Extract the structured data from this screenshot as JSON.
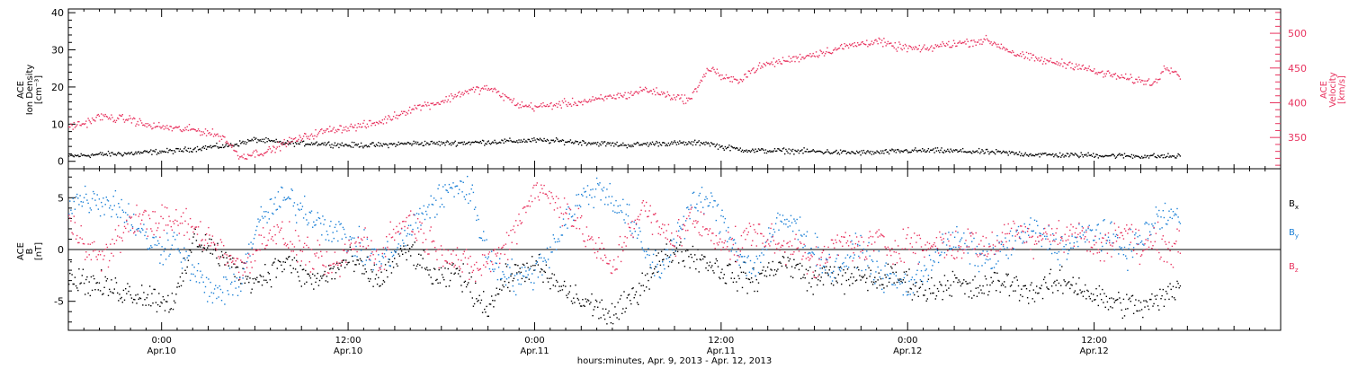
{
  "colors": {
    "black": "#000000",
    "pink": "#e8335f",
    "blue": "#1a7fd6"
  },
  "xaxis": {
    "tick_labels": [
      {
        "time": "0:00",
        "date": "Apr.10",
        "hour": 24
      },
      {
        "time": "12:00",
        "date": "Apr.10",
        "hour": 36
      },
      {
        "time": "0:00",
        "date": "Apr.11",
        "hour": 48
      },
      {
        "time": "12:00",
        "date": "Apr.11",
        "hour": 60
      },
      {
        "time": "0:00",
        "date": "Apr.12",
        "hour": 72
      },
      {
        "time": "12:00",
        "date": "Apr.12",
        "hour": 84
      }
    ],
    "caption": "hours:minutes, Apr.  9, 2013 - Apr. 12, 2013"
  },
  "chart_data": [
    {
      "type": "scatter",
      "panel": "top",
      "xlim_hours": [
        18,
        96
      ],
      "left_axis": {
        "label_lines": [
          "ACE",
          "Ion Density",
          "[cm⁻³]"
        ],
        "ylim": [
          -2,
          41
        ],
        "ticks": [
          0,
          10,
          20,
          30,
          40
        ]
      },
      "right_axis": {
        "label_lines": [
          "ACE",
          "Velocity",
          "[km/s]"
        ],
        "ylim": [
          305,
          535
        ],
        "ticks": [
          350,
          400,
          450,
          500
        ]
      },
      "series": [
        {
          "axis": "left",
          "color": "black",
          "noise": 0.6,
          "x": [
            18,
            20,
            22,
            24,
            25,
            26,
            27,
            28,
            29,
            30,
            31,
            32,
            34,
            36,
            38,
            40,
            42,
            44,
            46,
            48,
            50,
            52,
            54,
            56,
            58,
            59,
            60,
            62,
            64,
            66,
            68,
            70,
            72,
            74,
            76,
            78,
            80,
            82,
            84,
            86,
            88,
            89.5
          ],
          "y": [
            1.5,
            2,
            2.3,
            2.8,
            3,
            3.5,
            4,
            4.2,
            5,
            6,
            5.5,
            5,
            5,
            4.5,
            4.5,
            5,
            5,
            5.2,
            5.5,
            5.8,
            5.5,
            5,
            4.5,
            5,
            5,
            5.2,
            4,
            3,
            3,
            2.8,
            2.5,
            2.5,
            3,
            3,
            2.8,
            2.5,
            2,
            1.8,
            1.8,
            1.6,
            1.5,
            1.5
          ]
        },
        {
          "axis": "right",
          "color": "pink",
          "noise": 5,
          "x": [
            18,
            19,
            20,
            21,
            22,
            23,
            24,
            25,
            26,
            27,
            28,
            29,
            30,
            31,
            32,
            33,
            34,
            35,
            36,
            37,
            38,
            39,
            40,
            41,
            42,
            43,
            44,
            45,
            46,
            47,
            48,
            49,
            50,
            51,
            52,
            53,
            54,
            55,
            56,
            57,
            58,
            58.5,
            59,
            59.5,
            60,
            61,
            62,
            63,
            64,
            65,
            66,
            67,
            68,
            69,
            70,
            71,
            72,
            73,
            74,
            75,
            76,
            77,
            78,
            79,
            80,
            81,
            82,
            83,
            84,
            85,
            86,
            87,
            88,
            88.5,
            89,
            89.5
          ],
          "y": [
            367,
            371,
            381,
            378,
            377,
            368,
            366,
            363,
            362,
            358,
            350,
            323,
            328,
            332,
            344,
            350,
            357,
            363,
            365,
            368,
            373,
            382,
            392,
            398,
            402,
            413,
            419,
            422,
            410,
            397,
            395,
            397,
            400,
            402,
            405,
            410,
            412,
            420,
            415,
            409,
            405,
            427,
            445,
            450,
            437,
            432,
            448,
            457,
            461,
            466,
            471,
            476,
            482,
            486,
            490,
            482,
            480,
            477,
            483,
            486,
            488,
            491,
            482,
            470,
            465,
            460,
            457,
            454,
            445,
            441,
            436,
            432,
            430,
            455,
            448,
            440
          ]
        }
      ]
    },
    {
      "type": "scatter",
      "panel": "bottom",
      "xlim_hours": [
        18,
        96
      ],
      "left_axis": {
        "label_lines": [
          "ACE",
          "B",
          "[nT]"
        ],
        "ylim": [
          -7.8,
          7.8
        ],
        "ticks": [
          -5,
          0,
          5
        ]
      },
      "legend": [
        {
          "name": "B",
          "sub": "x",
          "color": "black"
        },
        {
          "name": "B",
          "sub": "y",
          "color": "blue"
        },
        {
          "name": "B",
          "sub": "z",
          "color": "pink"
        }
      ],
      "series": [
        {
          "name": "Bx",
          "color": "black",
          "noise": 1.1,
          "x": [
            18,
            19,
            20,
            21,
            22,
            23,
            24,
            24.5,
            25,
            25.5,
            26,
            27,
            28,
            29,
            30,
            31,
            32,
            33,
            34,
            35,
            36,
            37,
            38,
            39,
            40,
            41,
            42,
            43,
            44,
            45,
            46,
            47,
            48,
            49,
            50,
            51,
            52,
            53,
            54,
            55,
            56,
            57,
            58,
            59,
            60,
            61,
            62,
            63,
            64,
            65,
            66,
            67,
            68,
            69,
            70,
            71,
            72,
            73,
            74,
            75,
            76,
            77,
            78,
            79,
            80,
            81,
            82,
            83,
            84,
            85,
            86,
            87,
            88,
            89,
            89.5
          ],
          "y": [
            -2.5,
            -3,
            -3.5,
            -3.8,
            -4.1,
            -4.4,
            -4.8,
            -5,
            -4.2,
            -2,
            1,
            0.5,
            -1,
            -2,
            -3,
            -2,
            -1,
            -2.5,
            -3,
            -2,
            -1,
            -2,
            -3,
            -1,
            0,
            -2,
            -3,
            -2,
            -4,
            -5.5,
            -3,
            -2,
            -1.5,
            -3,
            -4,
            -5,
            -5.5,
            -6.5,
            -5,
            -3,
            -1,
            0,
            -0.5,
            -1,
            -2,
            -2.5,
            -3,
            -2,
            -1,
            -2,
            -3,
            -2,
            -3,
            -2.5,
            -3,
            -2.5,
            -3,
            -4,
            -3.5,
            -3,
            -4,
            -3.5,
            -3,
            -3.5,
            -4,
            -3.5,
            -3,
            -3.5,
            -4.5,
            -5,
            -5.2,
            -5.5,
            -5,
            -4,
            -3
          ]
        },
        {
          "name": "By",
          "color": "blue",
          "noise": 1.3,
          "x": [
            18,
            19,
            20,
            21,
            22,
            23,
            24,
            24.5,
            25,
            25.5,
            26,
            27,
            28,
            29,
            30,
            31,
            32,
            33,
            34,
            35,
            36,
            37,
            38,
            39,
            40,
            41,
            42,
            43,
            44,
            45,
            46,
            47,
            48,
            49,
            50,
            51,
            52,
            53,
            54,
            55,
            56,
            57,
            58,
            59,
            60,
            61,
            62,
            63,
            64,
            65,
            66,
            67,
            68,
            69,
            70,
            71,
            72,
            73,
            74,
            75,
            76,
            77,
            78,
            79,
            80,
            81,
            82,
            83,
            84,
            85,
            86,
            87,
            88,
            89,
            89.5
          ],
          "y": [
            4.5,
            5,
            4.8,
            4.5,
            3,
            1,
            0,
            1,
            0.5,
            -1,
            -2,
            -4,
            -4,
            -3,
            2,
            4,
            5,
            4,
            3,
            2,
            1,
            0,
            -1,
            0,
            2,
            4,
            5,
            6.5,
            5,
            -1,
            -2,
            -3,
            -2,
            0,
            3,
            5,
            6,
            5,
            3,
            0,
            -2,
            1,
            4,
            5,
            3,
            0,
            -2,
            1,
            3,
            2,
            0,
            -2,
            -1,
            0,
            -2,
            -3,
            -3.5,
            -2,
            0,
            1,
            0,
            -1,
            0,
            1,
            2,
            1,
            0,
            1,
            2,
            1,
            0,
            1,
            3,
            3.5,
            3
          ]
        },
        {
          "name": "Bz",
          "color": "pink",
          "noise": 1.3,
          "x": [
            18,
            19,
            20,
            21,
            22,
            23,
            24,
            24.5,
            25,
            25.5,
            26,
            27,
            28,
            29,
            30,
            31,
            32,
            33,
            34,
            35,
            36,
            37,
            38,
            39,
            40,
            41,
            42,
            43,
            44,
            45,
            46,
            47,
            48,
            49,
            50,
            51,
            52,
            53,
            54,
            55,
            56,
            57,
            58,
            59,
            60,
            61,
            62,
            63,
            64,
            65,
            66,
            67,
            68,
            69,
            70,
            71,
            72,
            73,
            74,
            75,
            76,
            77,
            78,
            79,
            80,
            81,
            82,
            83,
            84,
            85,
            86,
            87,
            88,
            89,
            89.5
          ],
          "y": [
            2.5,
            1,
            -1,
            0.5,
            3,
            2.8,
            2.8,
            2.6,
            2.6,
            2.5,
            2,
            1,
            0,
            -2,
            0,
            2,
            1,
            0,
            -1,
            -2,
            0,
            1,
            -1,
            2,
            3,
            1,
            0,
            -1,
            -2,
            -1,
            0,
            3,
            6,
            5,
            4,
            2,
            0,
            -2,
            2,
            4,
            2,
            1,
            3,
            2,
            1,
            0,
            2,
            1,
            0,
            1,
            -2,
            0,
            1,
            0,
            1,
            0,
            1,
            0,
            1,
            0,
            1,
            0,
            1,
            2,
            1,
            2,
            1,
            2,
            0,
            1,
            2,
            0,
            1,
            0,
            0.5
          ]
        }
      ]
    }
  ]
}
